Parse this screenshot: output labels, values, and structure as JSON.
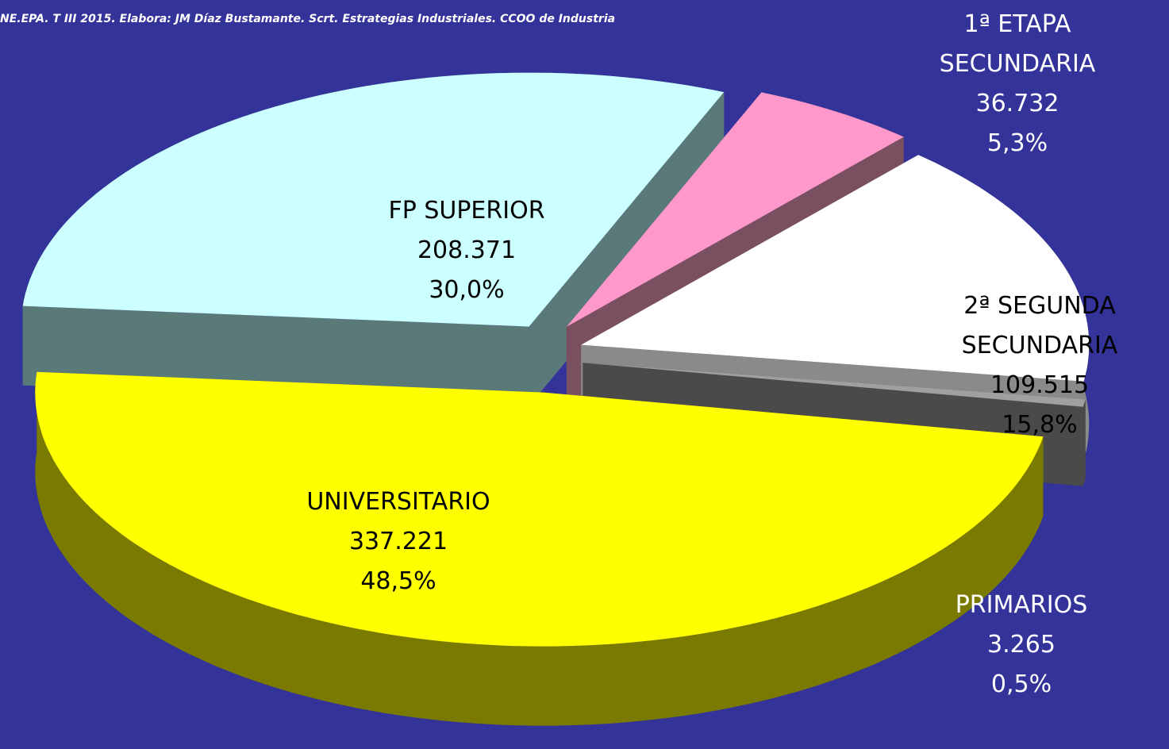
{
  "chart_data": {
    "type": "pie3d",
    "source": "NE.EPA. T III 2015.  Elabora: JM Díaz Bustamante. Scrt. Estrategias Industriales. CCOO de Industria",
    "categories": [
      [
        "UNIVERSITARIO"
      ],
      [
        "FP SUPERIOR"
      ],
      [
        "1ª ETAPA",
        "SECUNDARIA"
      ],
      [
        "2ª SEGUNDA",
        "SECUNDARIA"
      ],
      [
        "PRIMARIOS"
      ]
    ],
    "values": [
      337221,
      208371,
      36732,
      109515,
      3265
    ],
    "value_labels": [
      "337.221",
      "208.371",
      "36.732",
      "109.515",
      "3.265"
    ],
    "percentages": [
      48.5,
      30.0,
      5.3,
      15.8,
      0.5
    ],
    "percentage_labels": [
      "48,5%",
      "30,0%",
      "5,3%",
      "15,8%",
      "0,5%"
    ],
    "colors": [
      "#ffff00",
      "#ccffff",
      "#ff99cc",
      "#ffffff",
      "#a0a0a0"
    ],
    "side_colors": [
      "#7a7a00",
      "#5a7a7a",
      "#7a5060",
      "#8a8a8a",
      "#4a4a4a"
    ],
    "label_colors": [
      "#000000",
      "#000000",
      "#ffffff",
      "#000000",
      "#ffffff"
    ]
  }
}
